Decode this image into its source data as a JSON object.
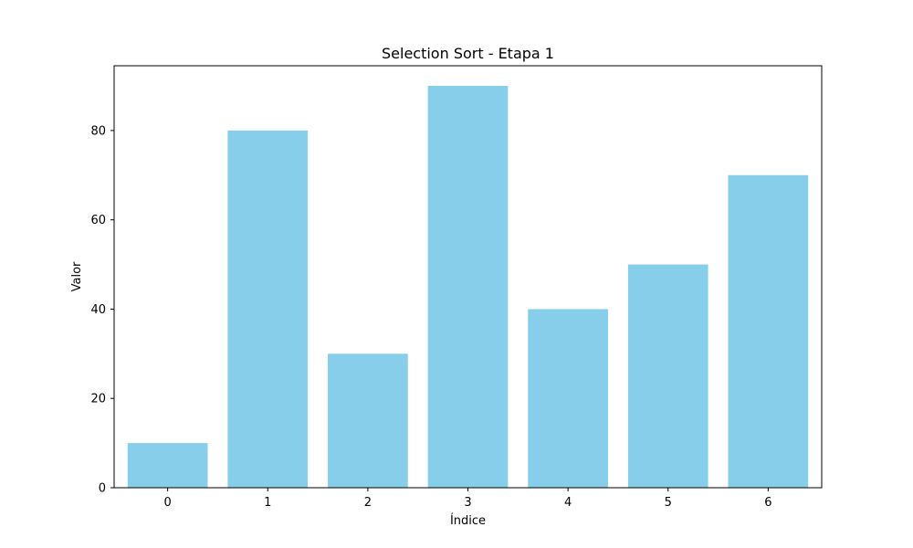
{
  "chart_data": {
    "type": "bar",
    "title": "Selection Sort - Etapa 1",
    "xlabel": "Índice",
    "ylabel": "Valor",
    "categories": [
      "0",
      "1",
      "2",
      "3",
      "4",
      "5",
      "6"
    ],
    "values": [
      10,
      80,
      30,
      90,
      40,
      50,
      70
    ],
    "yticks": [
      0,
      20,
      40,
      60,
      80
    ],
    "ylim": [
      0,
      94.5
    ],
    "bar_color": "#87CEEB",
    "grid": false,
    "legend": "none"
  }
}
